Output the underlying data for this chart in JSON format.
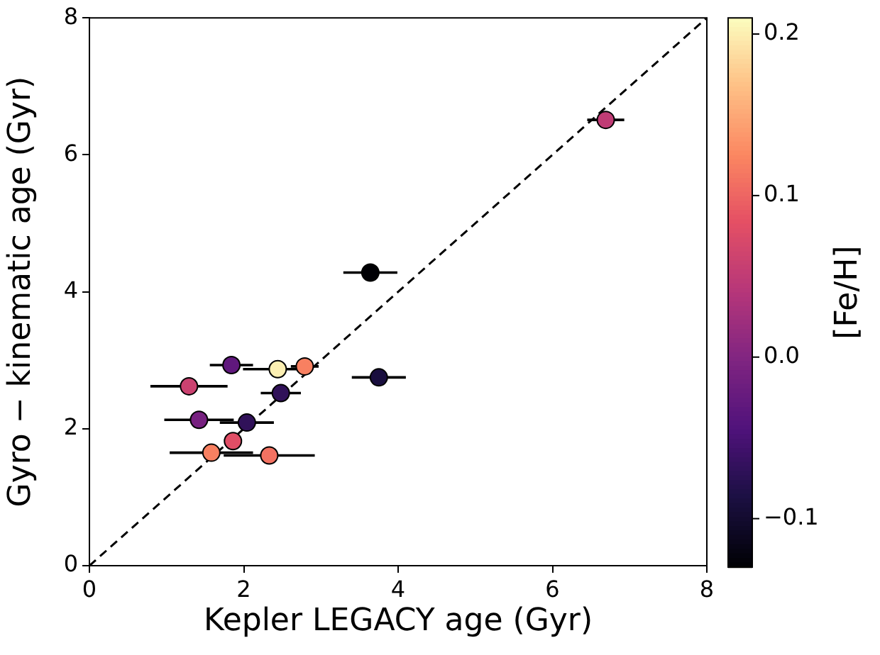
{
  "chart_data": {
    "type": "scatter",
    "xlabel": "Kepler LEGACY age (Gyr)",
    "ylabel": "Gyro − kinematic age (Gyr)",
    "clabel": "[Fe/H]",
    "xlim": [
      0,
      8
    ],
    "ylim": [
      0,
      8
    ],
    "xticks": [
      0,
      2,
      4,
      6,
      8
    ],
    "yticks": [
      0,
      2,
      4,
      6,
      8
    ],
    "clim": [
      -0.13,
      0.21
    ],
    "cticks": [
      {
        "value": -0.1,
        "label": "−0.1"
      },
      {
        "value": 0,
        "label": "0.0"
      },
      0.1,
      0.2
    ],
    "grid": false,
    "series": [
      {
        "type": "scatter",
        "marker": "circle",
        "x": [
          6.69,
          3.64,
          3.75,
          1.84,
          2.44,
          2.79,
          2.48,
          1.29,
          1.42,
          2.04,
          1.86,
          1.58,
          2.33
        ],
        "values": [
          6.51,
          4.28,
          2.75,
          2.93,
          2.87,
          2.91,
          2.52,
          2.62,
          2.13,
          2.09,
          1.82,
          1.65,
          1.61
        ],
        "xerrors": [
          0.24,
          0.35,
          0.35,
          0.28,
          0.45,
          0.18,
          0.26,
          0.5,
          0.45,
          0.35,
          null,
          0.54,
          0.59
        ],
        "colors": [
          "#c03c75",
          "#000004",
          "#190e3e",
          "#60187d",
          "#fcefb2",
          "#f88061",
          "#2f1159",
          "#cb4270",
          "#772180",
          "#2f1159",
          "#e14e66",
          "#f88061",
          "#f27062"
        ],
        "cvalues": [
          0.05,
          -0.13,
          -0.09,
          -0.03,
          0.2,
          0.12,
          -0.07,
          0.06,
          -0.01,
          -0.07,
          0.08,
          0.12,
          0.11
        ]
      },
      {
        "type": "line",
        "x": [
          0,
          8
        ],
        "values": [
          0,
          8
        ],
        "color": "#000000",
        "line_style": "dashed",
        "marker": "none"
      }
    ]
  }
}
